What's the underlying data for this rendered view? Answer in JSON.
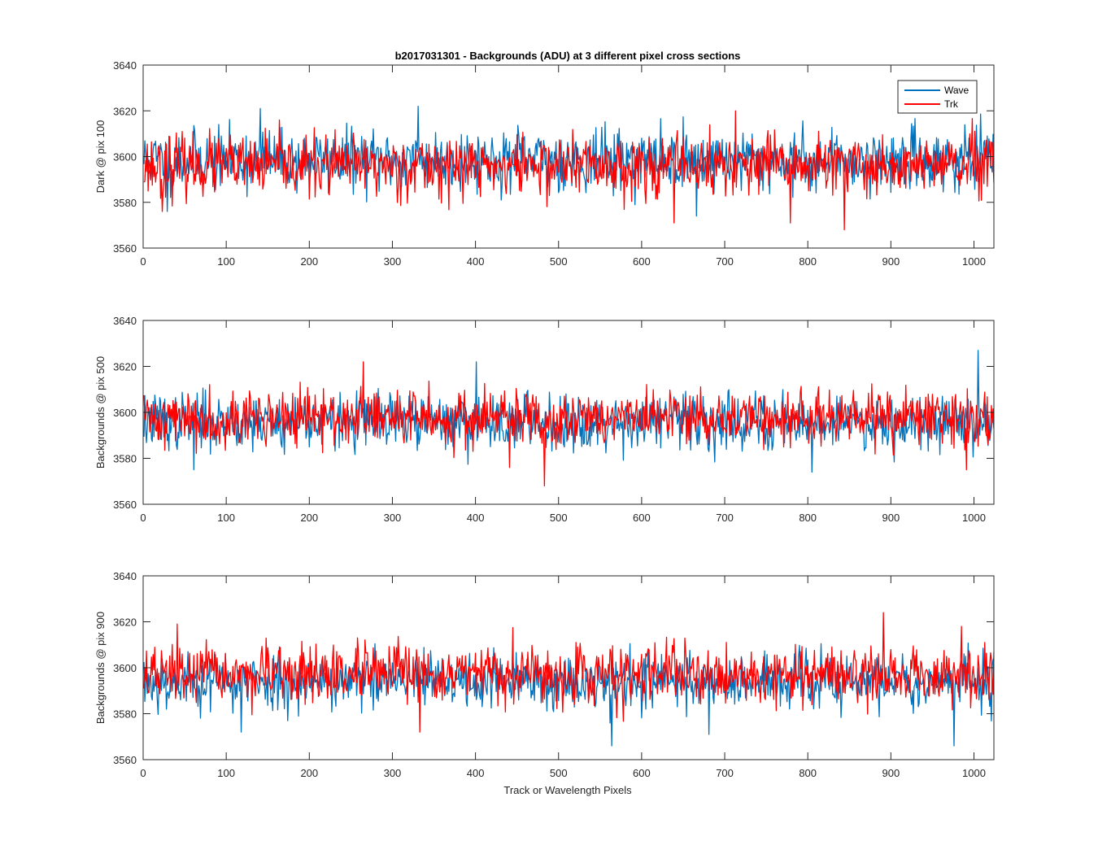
{
  "figure": {
    "title": "b2017031301 - Backgrounds (ADU) at 3 different pixel cross sections",
    "xlabel": "Track or Wavelength Pixels"
  },
  "legend": {
    "placement": "top-right of first panel",
    "entries": [
      "Wave",
      "Trk"
    ]
  },
  "colors": {
    "Wave": "#0072BD",
    "Trk": "#FF0000",
    "axes": "#262626"
  },
  "chart_data": [
    {
      "type": "line",
      "ylabel": "Dark @ pix 100",
      "xlim": [
        0,
        1024
      ],
      "ylim": [
        3560,
        3640
      ],
      "xticks": [
        0,
        100,
        200,
        300,
        400,
        500,
        600,
        700,
        800,
        900,
        1000
      ],
      "yticks": [
        3560,
        3580,
        3600,
        3620,
        3640
      ],
      "grid": false,
      "n_points": 1024,
      "series": [
        {
          "name": "Wave",
          "mean": 3598.5,
          "std": 6.5,
          "min": 3574,
          "max": 3622,
          "seed": 11,
          "extremes": [
            [
              140,
              3621
            ],
            [
              330,
              3622
            ],
            [
              28,
              3576
            ],
            [
              665,
              3574
            ]
          ]
        },
        {
          "name": "Trk",
          "mean": 3596,
          "std": 6.5,
          "min": 3568,
          "max": 3620,
          "seed": 23,
          "extremes": [
            [
              712,
              3620
            ],
            [
              638,
              3571
            ],
            [
              778,
              3571
            ],
            [
              843,
              3568
            ],
            [
              22,
              3576
            ]
          ]
        }
      ]
    },
    {
      "type": "line",
      "ylabel": "Backgrounds @ pix 500",
      "xlim": [
        0,
        1024
      ],
      "ylim": [
        3560,
        3640
      ],
      "xticks": [
        0,
        100,
        200,
        300,
        400,
        500,
        600,
        700,
        800,
        900,
        1000
      ],
      "yticks": [
        3560,
        3580,
        3600,
        3620,
        3640
      ],
      "grid": false,
      "n_points": 1024,
      "series": [
        {
          "name": "Wave",
          "mean": 3596,
          "std": 6.0,
          "min": 3574,
          "max": 3627,
          "seed": 37,
          "extremes": [
            [
              1004,
              3627
            ],
            [
              400,
              3622
            ],
            [
              60,
              3575
            ],
            [
              804,
              3574
            ]
          ]
        },
        {
          "name": "Trk",
          "mean": 3597.5,
          "std": 6.0,
          "min": 3568,
          "max": 3622,
          "seed": 41,
          "extremes": [
            [
              264,
              3622
            ],
            [
              482,
              3568
            ],
            [
              990,
              3575
            ],
            [
              440,
              3576
            ]
          ]
        }
      ]
    },
    {
      "type": "line",
      "ylabel": "Backgrounds @ pix 900",
      "xlim": [
        0,
        1024
      ],
      "ylim": [
        3560,
        3640
      ],
      "xticks": [
        0,
        100,
        200,
        300,
        400,
        500,
        600,
        700,
        800,
        900,
        1000
      ],
      "yticks": [
        3560,
        3580,
        3600,
        3620,
        3640
      ],
      "grid": false,
      "n_points": 1024,
      "series": [
        {
          "name": "Wave",
          "mean": 3594,
          "std": 6.0,
          "min": 3566,
          "max": 3618,
          "seed": 53,
          "extremes": [
            [
              563,
              3566
            ],
            [
              975,
              3566
            ],
            [
              117,
              3572
            ],
            [
              680,
              3571
            ]
          ]
        },
        {
          "name": "Trk",
          "mean": 3597,
          "std": 6.0,
          "min": 3572,
          "max": 3624,
          "seed": 67,
          "extremes": [
            [
              890,
              3624
            ],
            [
              40,
              3619
            ],
            [
              984,
              3618
            ],
            [
              332,
              3572
            ]
          ]
        }
      ]
    }
  ]
}
